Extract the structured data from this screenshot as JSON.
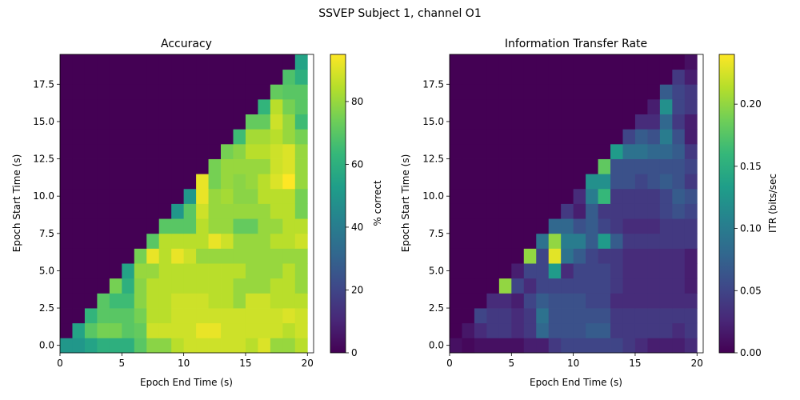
{
  "figure_title": "SSVEP Subject 1, channel O1",
  "chart_data": [
    {
      "type": "heatmap",
      "title": "Accuracy",
      "xlabel": "Epoch End Time (s)",
      "ylabel": "Epoch Start Time (s)",
      "xlim": [
        0,
        20.5
      ],
      "ylim": [
        -0.5,
        19.5
      ],
      "xticks": [
        0,
        5,
        10,
        15,
        20
      ],
      "xtick_labels": [
        "0",
        "5",
        "10",
        "15",
        "20"
      ],
      "yticks": [
        0.0,
        2.5,
        5.0,
        7.5,
        10.0,
        12.5,
        15.0,
        17.5
      ],
      "ytick_labels": [
        "0.0",
        "2.5",
        "5.0",
        "7.5",
        "10.0",
        "12.5",
        "15.0",
        "17.5"
      ],
      "x_centers": [
        0.5,
        1.5,
        2.5,
        3.5,
        4.5,
        5.5,
        6.5,
        7.5,
        8.5,
        9.5,
        10.5,
        11.5,
        12.5,
        13.5,
        14.5,
        15.5,
        16.5,
        17.5,
        18.5,
        19.5
      ],
      "y_centers": [
        0,
        1,
        2,
        3,
        4,
        5,
        6,
        7,
        8,
        9,
        10,
        11,
        12,
        13,
        14,
        15,
        16,
        17,
        18,
        19
      ],
      "colormap": "viridis",
      "colorbar": {
        "label": "% correct",
        "min": 0,
        "max": 95,
        "ticks": [
          0,
          20,
          40,
          60,
          80
        ],
        "tick_labels": [
          "0",
          "20",
          "40",
          "60",
          "80"
        ]
      },
      "z": [
        [
          50,
          50,
          55,
          60,
          60,
          60,
          70,
          78,
          78,
          85,
          88,
          88,
          88,
          88,
          88,
          85,
          90,
          80,
          80,
          85
        ],
        [
          0,
          55,
          70,
          75,
          75,
          70,
          72,
          88,
          88,
          88,
          88,
          92,
          92,
          88,
          88,
          88,
          88,
          88,
          85,
          88
        ],
        [
          0,
          0,
          62,
          70,
          70,
          70,
          75,
          85,
          85,
          88,
          88,
          88,
          88,
          88,
          88,
          88,
          88,
          88,
          90,
          88
        ],
        [
          0,
          0,
          0,
          70,
          65,
          65,
          78,
          85,
          85,
          88,
          88,
          88,
          85,
          85,
          80,
          88,
          88,
          85,
          85,
          85
        ],
        [
          0,
          0,
          0,
          0,
          75,
          60,
          78,
          85,
          85,
          85,
          85,
          85,
          85,
          85,
          80,
          80,
          80,
          85,
          85,
          80
        ],
        [
          0,
          0,
          0,
          0,
          0,
          55,
          80,
          80,
          85,
          85,
          85,
          85,
          85,
          85,
          85,
          80,
          80,
          80,
          85,
          80
        ],
        [
          0,
          0,
          0,
          0,
          0,
          0,
          75,
          92,
          85,
          92,
          88,
          80,
          80,
          80,
          80,
          80,
          80,
          80,
          80,
          80
        ],
        [
          0,
          0,
          0,
          0,
          0,
          0,
          0,
          70,
          85,
          85,
          85,
          85,
          92,
          88,
          80,
          80,
          80,
          85,
          85,
          88
        ],
        [
          0,
          0,
          0,
          0,
          0,
          0,
          0,
          0,
          70,
          70,
          70,
          85,
          80,
          80,
          72,
          72,
          80,
          80,
          85,
          85
        ],
        [
          0,
          0,
          0,
          0,
          0,
          0,
          0,
          0,
          0,
          50,
          70,
          88,
          80,
          80,
          80,
          80,
          80,
          85,
          85,
          75
        ],
        [
          0,
          0,
          0,
          0,
          0,
          0,
          0,
          0,
          0,
          0,
          50,
          92,
          80,
          82,
          78,
          78,
          85,
          85,
          85,
          75
        ],
        [
          0,
          0,
          0,
          0,
          0,
          0,
          0,
          0,
          0,
          0,
          0,
          92,
          75,
          80,
          78,
          80,
          85,
          90,
          95,
          80
        ],
        [
          0,
          0,
          0,
          0,
          0,
          0,
          0,
          0,
          0,
          0,
          0,
          0,
          75,
          80,
          80,
          80,
          80,
          88,
          90,
          80
        ],
        [
          0,
          0,
          0,
          0,
          0,
          0,
          0,
          0,
          0,
          0,
          0,
          0,
          0,
          75,
          78,
          85,
          85,
          88,
          90,
          80
        ],
        [
          0,
          0,
          0,
          0,
          0,
          0,
          0,
          0,
          0,
          0,
          0,
          0,
          0,
          0,
          65,
          82,
          82,
          85,
          80,
          75
        ],
        [
          0,
          0,
          0,
          0,
          0,
          0,
          0,
          0,
          0,
          0,
          0,
          0,
          0,
          0,
          0,
          72,
          72,
          88,
          80,
          65
        ],
        [
          0,
          0,
          0,
          0,
          0,
          0,
          0,
          0,
          0,
          0,
          0,
          0,
          0,
          0,
          0,
          0,
          62,
          85,
          75,
          70
        ],
        [
          0,
          0,
          0,
          0,
          0,
          0,
          0,
          0,
          0,
          0,
          0,
          0,
          0,
          0,
          0,
          0,
          0,
          72,
          70,
          70
        ],
        [
          0,
          0,
          0,
          0,
          0,
          0,
          0,
          0,
          0,
          0,
          0,
          0,
          0,
          0,
          0,
          0,
          0,
          0,
          68,
          60
        ],
        [
          0,
          0,
          0,
          0,
          0,
          0,
          0,
          0,
          0,
          0,
          0,
          0,
          0,
          0,
          0,
          0,
          0,
          0,
          0,
          55
        ]
      ]
    },
    {
      "type": "heatmap",
      "title": "Information Transfer Rate",
      "xlabel": "Epoch End Time (s)",
      "ylabel": "Epoch Start Time (s)",
      "xlim": [
        0,
        20.5
      ],
      "ylim": [
        -0.5,
        19.5
      ],
      "xticks": [
        0,
        5,
        10,
        15,
        20
      ],
      "xtick_labels": [
        "0",
        "5",
        "10",
        "15",
        "20"
      ],
      "yticks": [
        0.0,
        2.5,
        5.0,
        7.5,
        10.0,
        12.5,
        15.0,
        17.5
      ],
      "ytick_labels": [
        "0.0",
        "2.5",
        "5.0",
        "7.5",
        "10.0",
        "12.5",
        "15.0",
        "17.5"
      ],
      "x_centers": [
        0.5,
        1.5,
        2.5,
        3.5,
        4.5,
        5.5,
        6.5,
        7.5,
        8.5,
        9.5,
        10.5,
        11.5,
        12.5,
        13.5,
        14.5,
        15.5,
        16.5,
        17.5,
        18.5,
        19.5
      ],
      "y_centers": [
        0,
        1,
        2,
        3,
        4,
        5,
        6,
        7,
        8,
        9,
        10,
        11,
        12,
        13,
        14,
        15,
        16,
        17,
        18,
        19
      ],
      "colormap": "viridis",
      "colorbar": {
        "label": "ITR (bits/sec",
        "min": 0,
        "max": 0.24,
        "ticks": [
          0,
          0.05,
          0.1,
          0.15,
          0.2
        ],
        "tick_labels": [
          "0.00",
          "0.05",
          "0.10",
          "0.15",
          "0.20"
        ]
      },
      "z": [
        [
          0.01,
          0.005,
          0.01,
          0.01,
          0.01,
          0.01,
          0.02,
          0.02,
          0.04,
          0.05,
          0.05,
          0.05,
          0.05,
          0.05,
          0.04,
          0.03,
          0.02,
          0.02,
          0.02,
          0.03
        ],
        [
          0,
          0.015,
          0.03,
          0.04,
          0.04,
          0.03,
          0.04,
          0.08,
          0.06,
          0.06,
          0.06,
          0.07,
          0.07,
          0.04,
          0.04,
          0.04,
          0.04,
          0.04,
          0.03,
          0.04
        ],
        [
          0,
          0,
          0.05,
          0.04,
          0.04,
          0.03,
          0.04,
          0.09,
          0.06,
          0.06,
          0.06,
          0.06,
          0.06,
          0.04,
          0.04,
          0.04,
          0.04,
          0.04,
          0.04,
          0.04
        ],
        [
          0,
          0,
          0,
          0.03,
          0.03,
          0.02,
          0.05,
          0.07,
          0.06,
          0.06,
          0.06,
          0.05,
          0.05,
          0.03,
          0.03,
          0.03,
          0.03,
          0.03,
          0.03,
          0.03
        ],
        [
          0,
          0,
          0,
          0,
          0.2,
          0.05,
          0.03,
          0.05,
          0.05,
          0.05,
          0.05,
          0.05,
          0.05,
          0.04,
          0.03,
          0.03,
          0.03,
          0.03,
          0.03,
          0.02
        ],
        [
          0,
          0,
          0,
          0,
          0,
          0.02,
          0.05,
          0.05,
          0.13,
          0.03,
          0.05,
          0.05,
          0.05,
          0.04,
          0.03,
          0.03,
          0.03,
          0.03,
          0.03,
          0.02
        ],
        [
          0,
          0,
          0,
          0,
          0,
          0,
          0.2,
          0.05,
          0.23,
          0.09,
          0.07,
          0.05,
          0.04,
          0.04,
          0.03,
          0.03,
          0.03,
          0.03,
          0.03,
          0.02
        ],
        [
          0,
          0,
          0,
          0,
          0,
          0,
          0,
          0.09,
          0.2,
          0.1,
          0.1,
          0.07,
          0.13,
          0.07,
          0.04,
          0.04,
          0.04,
          0.04,
          0.04,
          0.04
        ],
        [
          0,
          0,
          0,
          0,
          0,
          0,
          0,
          0,
          0.08,
          0.08,
          0.06,
          0.07,
          0.05,
          0.04,
          0.03,
          0.03,
          0.03,
          0.04,
          0.04,
          0.04
        ],
        [
          0,
          0,
          0,
          0,
          0,
          0,
          0,
          0,
          0,
          0.04,
          0.02,
          0.07,
          0.04,
          0.04,
          0.04,
          0.04,
          0.04,
          0.05,
          0.06,
          0.05
        ],
        [
          0,
          0,
          0,
          0,
          0,
          0,
          0,
          0,
          0,
          0,
          0.03,
          0.1,
          0.16,
          0.04,
          0.04,
          0.04,
          0.04,
          0.05,
          0.07,
          0.06
        ],
        [
          0,
          0,
          0,
          0,
          0,
          0,
          0,
          0,
          0,
          0,
          0,
          0.12,
          0.12,
          0.06,
          0.06,
          0.05,
          0.06,
          0.07,
          0.06,
          0.04
        ],
        [
          0,
          0,
          0,
          0,
          0,
          0,
          0,
          0,
          0,
          0,
          0,
          0,
          0.18,
          0.06,
          0.06,
          0.06,
          0.06,
          0.06,
          0.06,
          0.05
        ],
        [
          0,
          0,
          0,
          0,
          0,
          0,
          0,
          0,
          0,
          0,
          0,
          0,
          0,
          0.13,
          0.09,
          0.09,
          0.08,
          0.08,
          0.07,
          0.04
        ],
        [
          0,
          0,
          0,
          0,
          0,
          0,
          0,
          0,
          0,
          0,
          0,
          0,
          0,
          0,
          0.05,
          0.07,
          0.06,
          0.1,
          0.06,
          0.02
        ],
        [
          0,
          0,
          0,
          0,
          0,
          0,
          0,
          0,
          0,
          0,
          0,
          0,
          0,
          0,
          0,
          0.03,
          0.03,
          0.08,
          0.04,
          0.02
        ],
        [
          0,
          0,
          0,
          0,
          0,
          0,
          0,
          0,
          0,
          0,
          0,
          0,
          0,
          0,
          0,
          0,
          0.02,
          0.12,
          0.05,
          0.04
        ],
        [
          0,
          0,
          0,
          0,
          0,
          0,
          0,
          0,
          0,
          0,
          0,
          0,
          0,
          0,
          0,
          0,
          0,
          0.07,
          0.05,
          0.04
        ],
        [
          0,
          0,
          0,
          0,
          0,
          0,
          0,
          0,
          0,
          0,
          0,
          0,
          0,
          0,
          0,
          0,
          0,
          0,
          0.04,
          0.02
        ],
        [
          0,
          0,
          0,
          0,
          0,
          0,
          0,
          0,
          0,
          0,
          0,
          0,
          0,
          0,
          0,
          0,
          0,
          0,
          0,
          0.01
        ]
      ]
    }
  ]
}
